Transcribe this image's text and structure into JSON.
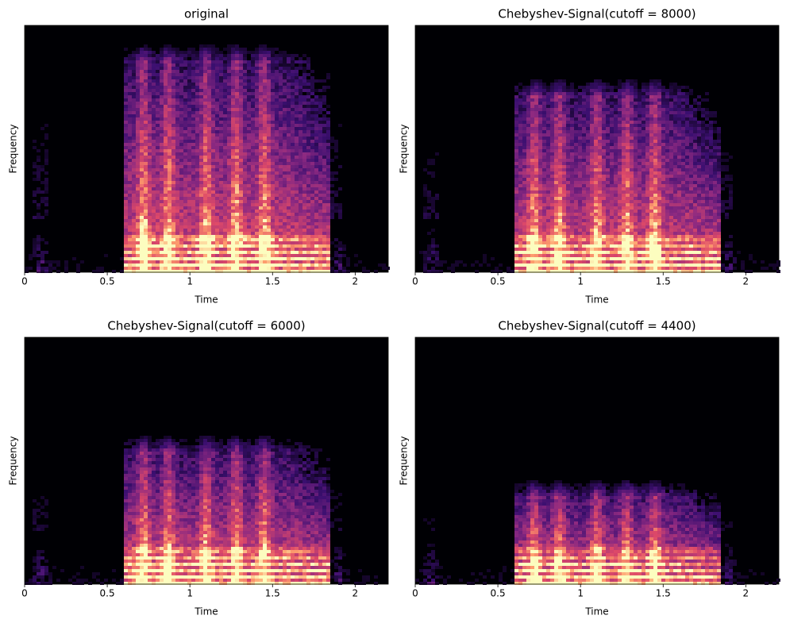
{
  "chart_data": [
    {
      "type": "spectrogram",
      "title": "original",
      "x_label": "Time",
      "y_label": "Frequency",
      "xlim": [
        0,
        2.2
      ],
      "xticks": [
        0,
        0.5,
        1,
        1.5,
        2
      ]
    },
    {
      "type": "spectrogram",
      "title": "Chebyshev-Signal(cutoff = 8000)",
      "x_label": "Time",
      "y_label": "Frequency",
      "xlim": [
        0,
        2.2
      ],
      "xticks": [
        0,
        0.5,
        1,
        1.5,
        2
      ]
    },
    {
      "type": "spectrogram",
      "title": "Chebyshev-Signal(cutoff = 6000)",
      "x_label": "Time",
      "y_label": "Frequency",
      "xlim": [
        0,
        2.2
      ],
      "xticks": [
        0,
        0.5,
        1,
        1.5,
        2
      ]
    },
    {
      "type": "spectrogram",
      "title": "Chebyshev-Signal(cutoff = 4400)",
      "x_label": "Time",
      "y_label": "Frequency",
      "xlim": [
        0,
        2.2
      ],
      "xticks": [
        0,
        0.5,
        1,
        1.5,
        2
      ]
    }
  ]
}
